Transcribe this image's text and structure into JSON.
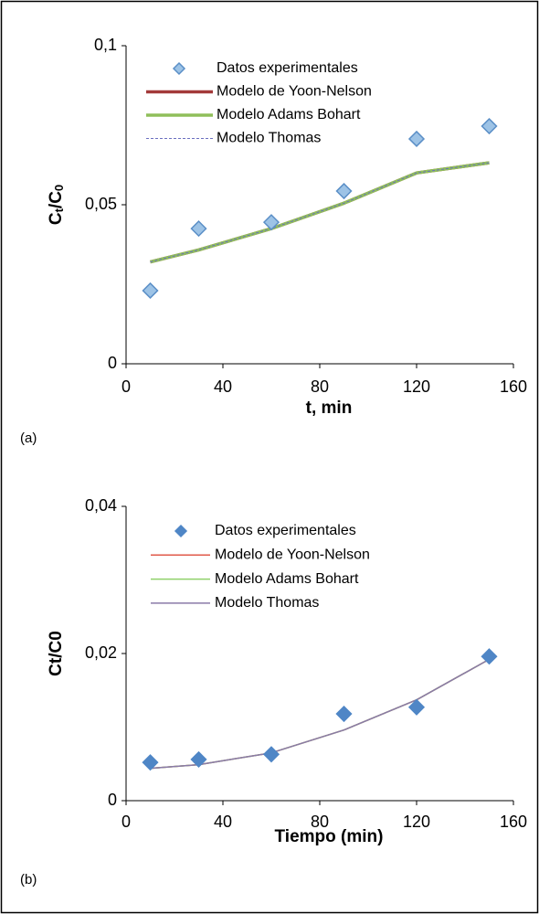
{
  "chart_data": [
    {
      "type": "scatter",
      "panel_label": "(a)",
      "y_label": [
        "C",
        "t",
        "/C",
        "0"
      ],
      "x_label": "t, min",
      "x": [
        10,
        30,
        60,
        90,
        120,
        150
      ],
      "xlim": [
        0,
        160
      ],
      "xticks": [
        0,
        40,
        80,
        120,
        160
      ],
      "ylim": [
        0,
        0.1
      ],
      "yticks": [
        0,
        {
          "value": 0.05,
          "label": "0,05"
        },
        {
          "value": 0.1,
          "label": "0,1"
        }
      ],
      "series": [
        {
          "name": "Datos experimentales",
          "color": "#9dc3e6",
          "edge": "#5b8fc7",
          "marker": "diamond",
          "values": [
            0.023,
            0.0425,
            0.0445,
            0.0543,
            0.0707,
            0.0747
          ]
        },
        {
          "name": "Modelo de Yoon-Nelson",
          "color": "#a33a3a",
          "line_width": 3.5,
          "values": [
            0.032,
            0.0358,
            0.0425,
            0.0505,
            0.06,
            0.0632
          ]
        },
        {
          "name": "Modelo Adams Bohart",
          "color": "#8fbf5a",
          "line_width": 3.5,
          "values": [
            0.032,
            0.0358,
            0.0425,
            0.0505,
            0.06,
            0.0632
          ]
        },
        {
          "name": "Modelo Thomas",
          "color": "#6a6fc0",
          "line_width": 1,
          "dashed": true,
          "values": [
            0.032,
            0.0358,
            0.0425,
            0.0505,
            0.06,
            0.0632
          ]
        }
      ]
    },
    {
      "type": "scatter",
      "panel_label": "(b)",
      "y_label": [
        "Ct/C0"
      ],
      "x_label": "Tiempo (min)",
      "x": [
        10,
        30,
        60,
        90,
        120,
        150
      ],
      "xlim": [
        0,
        160
      ],
      "xticks": [
        0,
        40,
        80,
        120,
        160
      ],
      "ylim": [
        0,
        0.04
      ],
      "yticks": [
        0,
        {
          "value": 0.02,
          "label": "0,02"
        },
        {
          "value": 0.04,
          "label": "0,04"
        }
      ],
      "series": [
        {
          "name": "Datos experimentales",
          "color": "#4f86c6",
          "edge": "#4f86c6",
          "marker": "diamond",
          "values": [
            0.0052,
            0.0056,
            0.0063,
            0.0118,
            0.0127,
            0.0196
          ]
        },
        {
          "name": "Modelo de Yoon-Nelson",
          "color": "#e05a4a",
          "line_width": 1.5,
          "values": [
            0.0044,
            0.0049,
            0.0065,
            0.0096,
            0.0137,
            0.0192
          ]
        },
        {
          "name": "Modelo Adams Bohart",
          "color": "#8fd16a",
          "line_width": 1.5,
          "values": [
            0.0044,
            0.0049,
            0.0065,
            0.0096,
            0.0137,
            0.0192
          ]
        },
        {
          "name": "Modelo Thomas",
          "color": "#8a7aa8",
          "line_width": 1.5,
          "values": [
            0.0044,
            0.0049,
            0.0065,
            0.0096,
            0.0137,
            0.0192
          ]
        }
      ]
    }
  ]
}
